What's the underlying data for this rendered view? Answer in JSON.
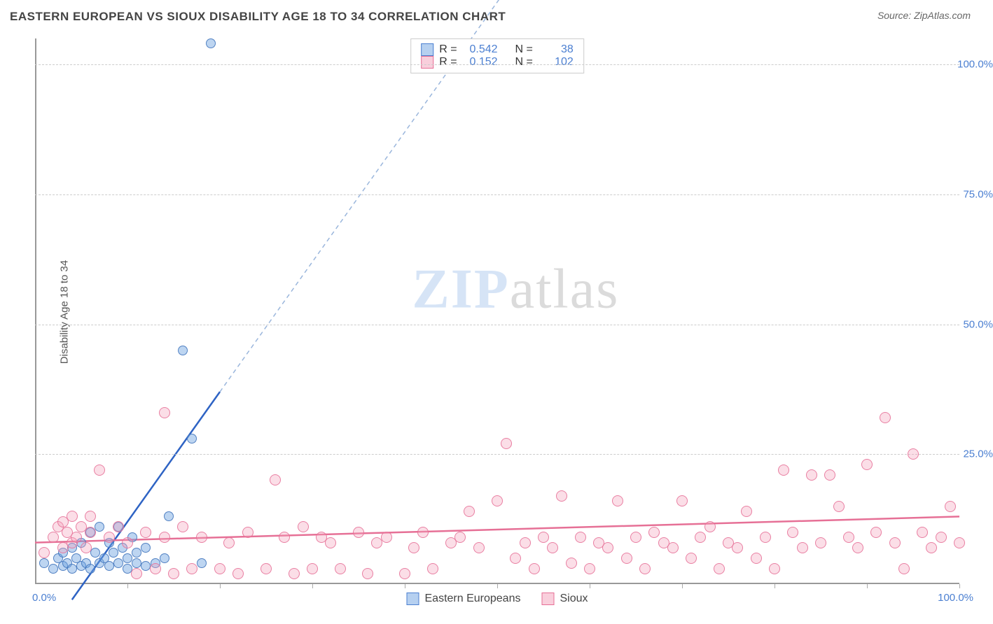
{
  "title": "EASTERN EUROPEAN VS SIOUX DISABILITY AGE 18 TO 34 CORRELATION CHART",
  "source": "Source: ZipAtlas.com",
  "ylabel": "Disability Age 18 to 34",
  "watermark_a": "ZIP",
  "watermark_b": "atlas",
  "chart": {
    "type": "scatter",
    "xlim": [
      0,
      100
    ],
    "ylim": [
      0,
      105
    ],
    "yticks": [
      25,
      50,
      75,
      100
    ],
    "ytick_labels": [
      "25.0%",
      "50.0%",
      "75.0%",
      "100.0%"
    ],
    "xtick_marks": [
      10,
      20,
      30,
      40,
      50,
      60,
      70,
      80,
      90,
      100
    ],
    "x0_label": "0.0%",
    "x100_label": "100.0%",
    "grid_color": "#cccccc",
    "axis_color": "#999999",
    "background_color": "#ffffff",
    "tick_label_color": "#4b7fd1",
    "series": [
      {
        "name": "Eastern Europeans",
        "color_fill": "rgba(109,162,225,0.45)",
        "color_stroke": "#4b7fd1",
        "marker_size": 14,
        "R": "0.542",
        "N": "38",
        "trend": {
          "x1": 4,
          "y1": -3,
          "x2": 20,
          "y2": 37,
          "color": "#2e63c4",
          "width": 2.5,
          "dash": "none",
          "ext_x2": 62,
          "ext_y2": 142,
          "ext_dash": "6,5",
          "ext_color": "#9ab6dc"
        },
        "points": [
          [
            1,
            4
          ],
          [
            2,
            3
          ],
          [
            2.5,
            5
          ],
          [
            3,
            3.5
          ],
          [
            3,
            6
          ],
          [
            3.5,
            4
          ],
          [
            4,
            3
          ],
          [
            4,
            7
          ],
          [
            4.5,
            5
          ],
          [
            5,
            3.5
          ],
          [
            5,
            8
          ],
          [
            5.5,
            4
          ],
          [
            6,
            10
          ],
          [
            6,
            3
          ],
          [
            6.5,
            6
          ],
          [
            7,
            4
          ],
          [
            7,
            11
          ],
          [
            7.5,
            5
          ],
          [
            8,
            3.5
          ],
          [
            8,
            8
          ],
          [
            8.5,
            6
          ],
          [
            9,
            4
          ],
          [
            9,
            11
          ],
          [
            9.5,
            7
          ],
          [
            10,
            3
          ],
          [
            10,
            5
          ],
          [
            10.5,
            9
          ],
          [
            11,
            4
          ],
          [
            11,
            6
          ],
          [
            12,
            3.5
          ],
          [
            12,
            7
          ],
          [
            13,
            4
          ],
          [
            14,
            5
          ],
          [
            14.5,
            13
          ],
          [
            16,
            45
          ],
          [
            17,
            28
          ],
          [
            18,
            4
          ],
          [
            19,
            104
          ]
        ]
      },
      {
        "name": "Sioux",
        "color_fill": "rgba(244,160,185,0.35)",
        "color_stroke": "#e67096",
        "marker_size": 16,
        "R": "0.152",
        "N": "102",
        "trend": {
          "x1": 0,
          "y1": 8,
          "x2": 100,
          "y2": 13,
          "color": "#e67096",
          "width": 2.5,
          "dash": "none"
        },
        "points": [
          [
            1,
            6
          ],
          [
            2,
            9
          ],
          [
            2.5,
            11
          ],
          [
            3,
            7
          ],
          [
            3,
            12
          ],
          [
            3.5,
            10
          ],
          [
            4,
            8
          ],
          [
            4,
            13
          ],
          [
            4.5,
            9
          ],
          [
            5,
            11
          ],
          [
            5.5,
            7
          ],
          [
            6,
            10
          ],
          [
            6,
            13
          ],
          [
            7,
            22
          ],
          [
            8,
            9
          ],
          [
            9,
            11
          ],
          [
            10,
            8
          ],
          [
            11,
            2
          ],
          [
            12,
            10
          ],
          [
            13,
            3
          ],
          [
            14,
            9
          ],
          [
            14,
            33
          ],
          [
            15,
            2
          ],
          [
            16,
            11
          ],
          [
            17,
            3
          ],
          [
            18,
            9
          ],
          [
            20,
            3
          ],
          [
            21,
            8
          ],
          [
            22,
            2
          ],
          [
            23,
            10
          ],
          [
            25,
            3
          ],
          [
            26,
            20
          ],
          [
            27,
            9
          ],
          [
            28,
            2
          ],
          [
            29,
            11
          ],
          [
            30,
            3
          ],
          [
            31,
            9
          ],
          [
            32,
            8
          ],
          [
            33,
            3
          ],
          [
            35,
            10
          ],
          [
            36,
            2
          ],
          [
            37,
            8
          ],
          [
            38,
            9
          ],
          [
            40,
            2
          ],
          [
            41,
            7
          ],
          [
            42,
            10
          ],
          [
            43,
            3
          ],
          [
            45,
            8
          ],
          [
            46,
            9
          ],
          [
            47,
            14
          ],
          [
            48,
            7
          ],
          [
            50,
            16
          ],
          [
            51,
            27
          ],
          [
            52,
            5
          ],
          [
            53,
            8
          ],
          [
            54,
            3
          ],
          [
            55,
            9
          ],
          [
            56,
            7
          ],
          [
            57,
            17
          ],
          [
            58,
            4
          ],
          [
            59,
            9
          ],
          [
            60,
            3
          ],
          [
            61,
            8
          ],
          [
            62,
            7
          ],
          [
            63,
            16
          ],
          [
            64,
            5
          ],
          [
            65,
            9
          ],
          [
            66,
            3
          ],
          [
            67,
            10
          ],
          [
            68,
            8
          ],
          [
            69,
            7
          ],
          [
            70,
            16
          ],
          [
            71,
            5
          ],
          [
            72,
            9
          ],
          [
            73,
            11
          ],
          [
            74,
            3
          ],
          [
            75,
            8
          ],
          [
            76,
            7
          ],
          [
            77,
            14
          ],
          [
            78,
            5
          ],
          [
            79,
            9
          ],
          [
            80,
            3
          ],
          [
            81,
            22
          ],
          [
            82,
            10
          ],
          [
            83,
            7
          ],
          [
            84,
            21
          ],
          [
            85,
            8
          ],
          [
            86,
            21
          ],
          [
            87,
            15
          ],
          [
            88,
            9
          ],
          [
            89,
            7
          ],
          [
            90,
            23
          ],
          [
            91,
            10
          ],
          [
            92,
            32
          ],
          [
            93,
            8
          ],
          [
            94,
            3
          ],
          [
            95,
            25
          ],
          [
            96,
            10
          ],
          [
            97,
            7
          ],
          [
            98,
            9
          ],
          [
            99,
            15
          ],
          [
            100,
            8
          ]
        ]
      }
    ],
    "legend_bottom": [
      {
        "swatch": "blue",
        "label": "Eastern Europeans"
      },
      {
        "swatch": "pink",
        "label": "Sioux"
      }
    ]
  }
}
